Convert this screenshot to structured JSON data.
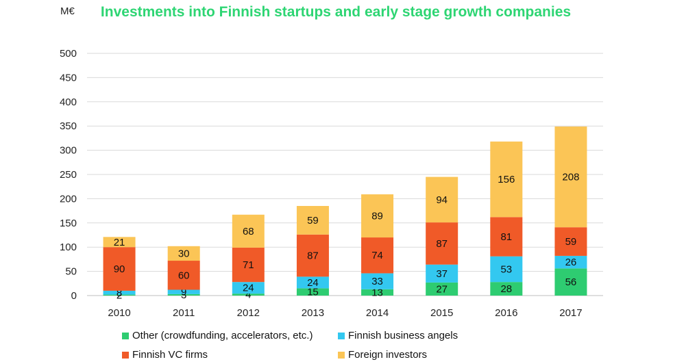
{
  "chart_data": {
    "type": "bar",
    "stacked": true,
    "title": "Investments into Finnish startups and early stage growth companies",
    "unit_label": "M€",
    "ylim": [
      0,
      500
    ],
    "yticks": [
      0,
      50,
      100,
      150,
      200,
      250,
      300,
      350,
      400,
      450,
      500
    ],
    "grid": true,
    "categories": [
      "2010",
      "2011",
      "2012",
      "2013",
      "2014",
      "2015",
      "2016",
      "2017"
    ],
    "series": [
      {
        "name": "Other (crowdfunding, accelerators, etc.)",
        "color": "#2ecc71",
        "values": [
          2,
          3,
          4,
          15,
          13,
          27,
          28,
          56
        ]
      },
      {
        "name": "Finnish business angels",
        "color": "#33c8f0",
        "values": [
          8,
          9,
          24,
          24,
          33,
          37,
          53,
          26
        ]
      },
      {
        "name": "Finnish VC firms",
        "color": "#f05a28",
        "values": [
          90,
          60,
          71,
          87,
          74,
          87,
          81,
          59
        ]
      },
      {
        "name": "Foreign investors",
        "color": "#fbc556",
        "values": [
          21,
          30,
          68,
          59,
          89,
          94,
          156,
          208
        ]
      }
    ],
    "legend_position": "bottom"
  }
}
